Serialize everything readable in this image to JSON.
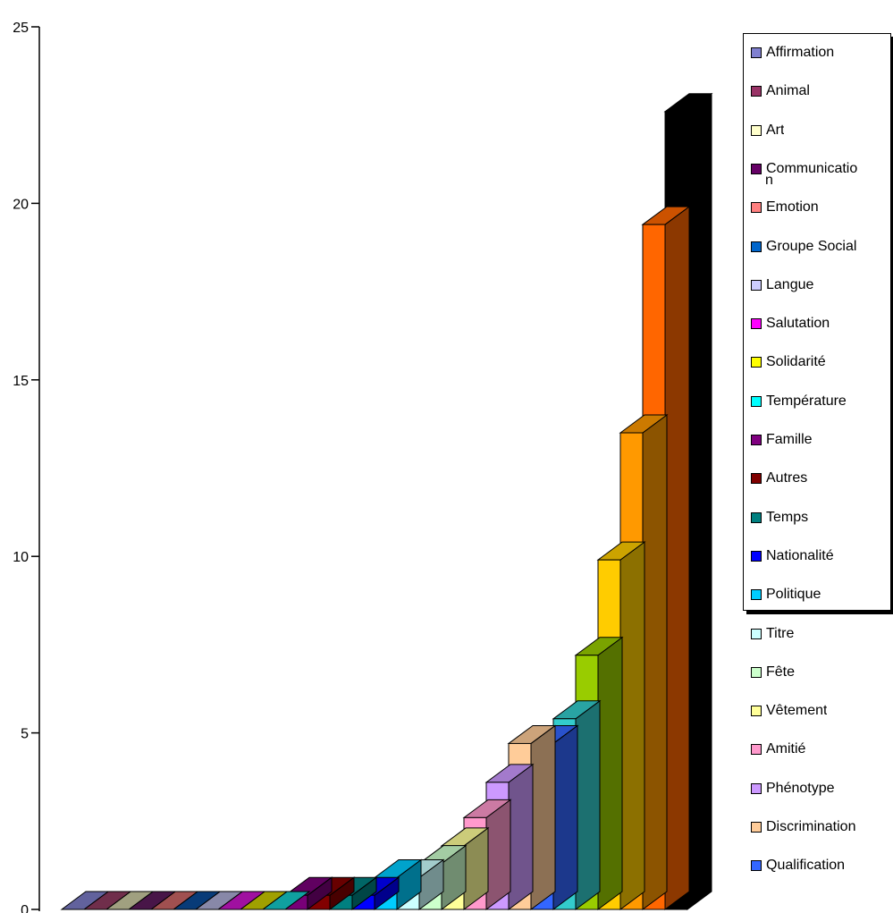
{
  "chart_data": {
    "type": "bar",
    "title": "",
    "xlabel": "",
    "ylabel": "",
    "ylim": [
      0,
      25
    ],
    "yticks": [
      0,
      5,
      10,
      15,
      20,
      25
    ],
    "grid": false,
    "legend_position": "right",
    "three_d": true,
    "series": [
      {
        "name": "Affirmation",
        "value": 0,
        "color": "#7a7ac4"
      },
      {
        "name": "Animal",
        "value": 0,
        "color": "#8c3a5e"
      },
      {
        "name": "Art",
        "value": 0,
        "color": "#c8c8a0"
      },
      {
        "name": "Communication",
        "value": 0,
        "color": "#5a1a5a"
      },
      {
        "name": "Emotion",
        "value": 0,
        "color": "#c86464"
      },
      {
        "name": "Groupe Social",
        "value": 0,
        "color": "#0a4a96"
      },
      {
        "name": "Langue",
        "value": 0,
        "color": "#aaaad2"
      },
      {
        "name": "Salutation",
        "value": 0,
        "color": "#c814c8"
      },
      {
        "name": "Solidarité",
        "value": 0,
        "color": "#c8c800"
      },
      {
        "name": "Température",
        "value": 0,
        "color": "#14c8c8"
      },
      {
        "name": "Famille",
        "value": 0.4,
        "color": "#780078"
      },
      {
        "name": "Autres",
        "value": 0.4,
        "color": "#820000"
      },
      {
        "name": "Temps",
        "value": 0.4,
        "color": "#008080"
      },
      {
        "name": "Nationalité",
        "value": 0.4,
        "color": "#0000ff"
      },
      {
        "name": "Politique",
        "value": 0.9,
        "color": "#00ccff"
      },
      {
        "name": "Titre",
        "value": 0.9,
        "color": "#ccffff"
      },
      {
        "name": "Fête",
        "value": 1.3,
        "color": "#ccffcc"
      },
      {
        "name": "Vêtement",
        "value": 1.8,
        "color": "#ffff99"
      },
      {
        "name": "Amitié",
        "value": 2.6,
        "color": "#ff99cc"
      },
      {
        "name": "Phénotype",
        "value": 3.6,
        "color": "#cc99ff"
      },
      {
        "name": "Discrimination",
        "value": 4.7,
        "color": "#ffcc99"
      },
      {
        "name": "Qualification",
        "value": 4.7,
        "color": "#3366ff"
      },
      {
        "name": "",
        "value": 5.4,
        "color": "#33cccc"
      },
      {
        "name": "",
        "value": 7.2,
        "color": "#99cc00"
      },
      {
        "name": "",
        "value": 9.9,
        "color": "#ffcc00"
      },
      {
        "name": "",
        "value": 13.5,
        "color": "#ff9900"
      },
      {
        "name": "",
        "value": 19.4,
        "color": "#ff6600"
      },
      {
        "name": "",
        "value": 22.6,
        "color": "#000000"
      }
    ],
    "legend": [
      {
        "label": "Affirmation",
        "color": "#8080d0"
      },
      {
        "label": "Animal",
        "color": "#993366"
      },
      {
        "label": "Art",
        "color": "#ffffcc"
      },
      {
        "label": "Communicatio\nn",
        "color": "#660066"
      },
      {
        "label": "Emotion",
        "color": "#ff8080"
      },
      {
        "label": "Groupe Social",
        "color": "#0066cc"
      },
      {
        "label": "Langue",
        "color": "#ccccff"
      },
      {
        "label": "Salutation",
        "color": "#ff00ff"
      },
      {
        "label": "Solidarité",
        "color": "#ffff00"
      },
      {
        "label": "Température",
        "color": "#00ffff"
      },
      {
        "label": "Famille",
        "color": "#800080"
      },
      {
        "label": "Autres",
        "color": "#800000"
      },
      {
        "label": "Temps",
        "color": "#008080"
      },
      {
        "label": "Nationalité",
        "color": "#0000ff"
      },
      {
        "label": "Politique",
        "color": "#00ccff"
      },
      {
        "label": "Titre",
        "color": "#ccffff"
      },
      {
        "label": "Fête",
        "color": "#ccffcc"
      },
      {
        "label": "Vêtement",
        "color": "#ffff99"
      },
      {
        "label": "Amitié",
        "color": "#ff99cc"
      },
      {
        "label": "Phénotype",
        "color": "#cc99ff"
      },
      {
        "label": "Discrimination",
        "color": "#ffcc99"
      },
      {
        "label": "Qualification",
        "color": "#3366ff"
      }
    ]
  }
}
